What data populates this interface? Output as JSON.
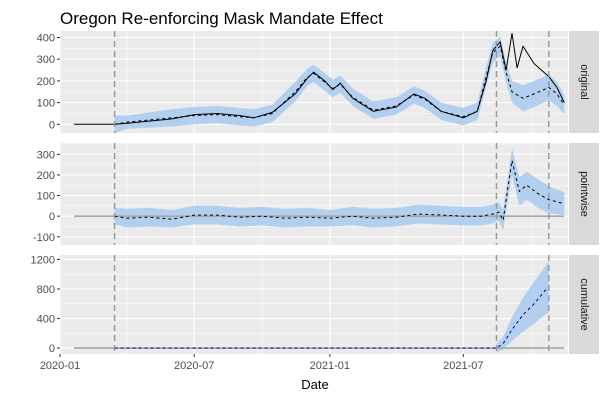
{
  "chart_data": {
    "type": "line",
    "title": "Oregon Re-enforcing Mask Mandate Effect",
    "xlabel": "Date",
    "ylabel": "",
    "xlim": [
      "2020-01-01",
      "2021-11-20"
    ],
    "x_ticks": [
      {
        "date": "2020-01-01",
        "label": "2020-01"
      },
      {
        "date": "2020-07-01",
        "label": "2020-07"
      },
      {
        "date": "2021-01-01",
        "label": "2021-01"
      },
      {
        "date": "2021-07-01",
        "label": "2021-07"
      }
    ],
    "vlines": [
      "2020-03-15",
      "2021-08-15",
      "2021-10-25"
    ],
    "legend": "none",
    "grid": true,
    "colors": {
      "panel_bg": "#ebebeb",
      "grid": "#ffffff",
      "band": "#b3cfef",
      "actual": "#000000",
      "predicted": "#000000",
      "baseline": "#a6a6a6",
      "cumulative_line": "#00008b",
      "vline": "#999999",
      "strip_bg": "#d9d9d9"
    },
    "panels": [
      {
        "strip": "original",
        "ylim": [
          -40,
          430
        ],
        "yticks": [
          0,
          100,
          200,
          300,
          400
        ],
        "actual": [
          [
            "2020-01-20",
            0
          ],
          [
            "2020-03-15",
            0
          ],
          [
            "2020-04-01",
            5
          ],
          [
            "2020-05-01",
            15
          ],
          [
            "2020-06-01",
            25
          ],
          [
            "2020-07-01",
            45
          ],
          [
            "2020-08-01",
            50
          ],
          [
            "2020-09-01",
            40
          ],
          [
            "2020-09-20",
            30
          ],
          [
            "2020-10-15",
            55
          ],
          [
            "2020-11-15",
            140
          ],
          [
            "2020-12-01",
            210
          ],
          [
            "2020-12-10",
            240
          ],
          [
            "2020-12-25",
            200
          ],
          [
            "2021-01-05",
            160
          ],
          [
            "2021-01-15",
            190
          ],
          [
            "2021-02-01",
            120
          ],
          [
            "2021-03-01",
            60
          ],
          [
            "2021-04-01",
            80
          ],
          [
            "2021-04-25",
            140
          ],
          [
            "2021-05-10",
            120
          ],
          [
            "2021-06-01",
            60
          ],
          [
            "2021-07-01",
            30
          ],
          [
            "2021-07-20",
            60
          ],
          [
            "2021-08-01",
            200
          ],
          [
            "2021-08-10",
            340
          ],
          [
            "2021-08-20",
            380
          ],
          [
            "2021-08-28",
            250
          ],
          [
            "2021-09-05",
            420
          ],
          [
            "2021-09-12",
            260
          ],
          [
            "2021-09-20",
            360
          ],
          [
            "2021-10-05",
            280
          ],
          [
            "2021-10-25",
            220
          ],
          [
            "2021-11-05",
            170
          ],
          [
            "2021-11-15",
            100
          ]
        ],
        "predicted": [
          [
            "2020-03-15",
            0
          ],
          [
            "2020-04-01",
            10
          ],
          [
            "2020-05-01",
            20
          ],
          [
            "2020-06-01",
            30
          ],
          [
            "2020-07-01",
            40
          ],
          [
            "2020-08-01",
            45
          ],
          [
            "2020-09-01",
            35
          ],
          [
            "2020-09-20",
            30
          ],
          [
            "2020-10-15",
            50
          ],
          [
            "2020-11-15",
            150
          ],
          [
            "2020-12-01",
            215
          ],
          [
            "2020-12-10",
            235
          ],
          [
            "2020-12-25",
            195
          ],
          [
            "2021-01-05",
            165
          ],
          [
            "2021-01-15",
            185
          ],
          [
            "2021-02-01",
            125
          ],
          [
            "2021-03-01",
            65
          ],
          [
            "2021-04-01",
            85
          ],
          [
            "2021-04-25",
            135
          ],
          [
            "2021-05-10",
            115
          ],
          [
            "2021-06-01",
            60
          ],
          [
            "2021-07-01",
            35
          ],
          [
            "2021-07-20",
            60
          ],
          [
            "2021-08-01",
            220
          ],
          [
            "2021-08-10",
            330
          ],
          [
            "2021-08-20",
            360
          ],
          [
            "2021-08-28",
            240
          ],
          [
            "2021-09-05",
            150
          ],
          [
            "2021-09-20",
            120
          ],
          [
            "2021-10-05",
            140
          ],
          [
            "2021-10-25",
            170
          ],
          [
            "2021-11-05",
            140
          ],
          [
            "2021-11-15",
            90
          ]
        ],
        "band_lower": [
          [
            "2020-03-15",
            -40
          ],
          [
            "2020-04-01",
            -20
          ],
          [
            "2020-05-01",
            -15
          ],
          [
            "2020-06-01",
            -10
          ],
          [
            "2020-07-01",
            0
          ],
          [
            "2020-08-01",
            5
          ],
          [
            "2020-09-01",
            -5
          ],
          [
            "2020-09-20",
            -10
          ],
          [
            "2020-10-15",
            10
          ],
          [
            "2020-11-15",
            105
          ],
          [
            "2020-12-01",
            175
          ],
          [
            "2020-12-10",
            195
          ],
          [
            "2020-12-25",
            155
          ],
          [
            "2021-01-05",
            125
          ],
          [
            "2021-01-15",
            145
          ],
          [
            "2021-02-01",
            85
          ],
          [
            "2021-03-01",
            25
          ],
          [
            "2021-04-01",
            45
          ],
          [
            "2021-04-25",
            95
          ],
          [
            "2021-05-10",
            75
          ],
          [
            "2021-06-01",
            20
          ],
          [
            "2021-07-01",
            -5
          ],
          [
            "2021-07-20",
            20
          ],
          [
            "2021-08-01",
            175
          ],
          [
            "2021-08-10",
            285
          ],
          [
            "2021-08-20",
            315
          ],
          [
            "2021-08-28",
            195
          ],
          [
            "2021-09-05",
            100
          ],
          [
            "2021-09-20",
            60
          ],
          [
            "2021-10-05",
            80
          ],
          [
            "2021-10-25",
            110
          ],
          [
            "2021-11-05",
            85
          ],
          [
            "2021-11-15",
            45
          ]
        ],
        "band_upper": [
          [
            "2020-03-15",
            40
          ],
          [
            "2020-04-01",
            40
          ],
          [
            "2020-05-01",
            55
          ],
          [
            "2020-06-01",
            70
          ],
          [
            "2020-07-01",
            80
          ],
          [
            "2020-08-01",
            85
          ],
          [
            "2020-09-01",
            75
          ],
          [
            "2020-09-20",
            70
          ],
          [
            "2020-10-15",
            90
          ],
          [
            "2020-11-15",
            195
          ],
          [
            "2020-12-01",
            255
          ],
          [
            "2020-12-10",
            275
          ],
          [
            "2020-12-25",
            235
          ],
          [
            "2021-01-05",
            205
          ],
          [
            "2021-01-15",
            225
          ],
          [
            "2021-02-01",
            165
          ],
          [
            "2021-03-01",
            105
          ],
          [
            "2021-04-01",
            125
          ],
          [
            "2021-04-25",
            175
          ],
          [
            "2021-05-10",
            155
          ],
          [
            "2021-06-01",
            100
          ],
          [
            "2021-07-01",
            75
          ],
          [
            "2021-07-20",
            100
          ],
          [
            "2021-08-01",
            265
          ],
          [
            "2021-08-10",
            375
          ],
          [
            "2021-08-20",
            405
          ],
          [
            "2021-08-28",
            285
          ],
          [
            "2021-09-05",
            200
          ],
          [
            "2021-09-20",
            180
          ],
          [
            "2021-10-05",
            200
          ],
          [
            "2021-10-25",
            230
          ],
          [
            "2021-11-05",
            195
          ],
          [
            "2021-11-15",
            135
          ]
        ]
      },
      {
        "strip": "pointwise",
        "ylim": [
          -140,
          355
        ],
        "yticks": [
          -100,
          0,
          100,
          200,
          300
        ],
        "baseline": 0,
        "predicted": [
          [
            "2020-03-15",
            0
          ],
          [
            "2020-04-01",
            -10
          ],
          [
            "2020-05-01",
            -5
          ],
          [
            "2020-06-01",
            -15
          ],
          [
            "2020-07-01",
            5
          ],
          [
            "2020-08-01",
            5
          ],
          [
            "2020-09-01",
            -5
          ],
          [
            "2020-10-01",
            0
          ],
          [
            "2020-11-01",
            -10
          ],
          [
            "2020-12-01",
            -5
          ],
          [
            "2021-01-01",
            -10
          ],
          [
            "2021-02-01",
            0
          ],
          [
            "2021-03-01",
            -10
          ],
          [
            "2021-04-01",
            -5
          ],
          [
            "2021-05-01",
            10
          ],
          [
            "2021-06-01",
            5
          ],
          [
            "2021-07-01",
            0
          ],
          [
            "2021-07-25",
            0
          ],
          [
            "2021-08-10",
            10
          ],
          [
            "2021-08-18",
            20
          ],
          [
            "2021-08-24",
            -20
          ],
          [
            "2021-09-05",
            270
          ],
          [
            "2021-09-15",
            120
          ],
          [
            "2021-09-25",
            150
          ],
          [
            "2021-10-10",
            110
          ],
          [
            "2021-10-25",
            80
          ],
          [
            "2021-11-05",
            70
          ],
          [
            "2021-11-15",
            60
          ]
        ],
        "band_lower": [
          [
            "2020-03-15",
            -40
          ],
          [
            "2020-04-01",
            -55
          ],
          [
            "2020-05-01",
            -50
          ],
          [
            "2020-06-01",
            -55
          ],
          [
            "2020-07-01",
            -40
          ],
          [
            "2020-08-01",
            -40
          ],
          [
            "2020-09-01",
            -50
          ],
          [
            "2020-10-01",
            -45
          ],
          [
            "2020-11-01",
            -55
          ],
          [
            "2020-12-01",
            -50
          ],
          [
            "2021-01-01",
            -50
          ],
          [
            "2021-02-01",
            -45
          ],
          [
            "2021-03-01",
            -55
          ],
          [
            "2021-04-01",
            -50
          ],
          [
            "2021-05-01",
            -35
          ],
          [
            "2021-06-01",
            -40
          ],
          [
            "2021-07-01",
            -45
          ],
          [
            "2021-07-25",
            -45
          ],
          [
            "2021-08-10",
            -35
          ],
          [
            "2021-08-18",
            -20
          ],
          [
            "2021-08-24",
            -70
          ],
          [
            "2021-09-05",
            200
          ],
          [
            "2021-09-15",
            50
          ],
          [
            "2021-09-25",
            80
          ],
          [
            "2021-10-10",
            40
          ],
          [
            "2021-10-25",
            15
          ],
          [
            "2021-11-05",
            10
          ],
          [
            "2021-11-15",
            5
          ]
        ],
        "band_upper": [
          [
            "2020-03-15",
            40
          ],
          [
            "2020-04-01",
            35
          ],
          [
            "2020-05-01",
            40
          ],
          [
            "2020-06-01",
            30
          ],
          [
            "2020-07-01",
            50
          ],
          [
            "2020-08-01",
            50
          ],
          [
            "2020-09-01",
            40
          ],
          [
            "2020-10-01",
            45
          ],
          [
            "2020-11-01",
            35
          ],
          [
            "2020-12-01",
            40
          ],
          [
            "2021-01-01",
            30
          ],
          [
            "2021-02-01",
            45
          ],
          [
            "2021-03-01",
            35
          ],
          [
            "2021-04-01",
            40
          ],
          [
            "2021-05-01",
            55
          ],
          [
            "2021-06-01",
            50
          ],
          [
            "2021-07-01",
            45
          ],
          [
            "2021-07-25",
            45
          ],
          [
            "2021-08-10",
            55
          ],
          [
            "2021-08-18",
            70
          ],
          [
            "2021-08-24",
            30
          ],
          [
            "2021-09-05",
            330
          ],
          [
            "2021-09-15",
            190
          ],
          [
            "2021-09-25",
            215
          ],
          [
            "2021-10-10",
            180
          ],
          [
            "2021-10-25",
            145
          ],
          [
            "2021-11-05",
            130
          ],
          [
            "2021-11-15",
            115
          ]
        ]
      },
      {
        "strip": "cumulative",
        "ylim": [
          -80,
          1260
        ],
        "yticks": [
          0,
          400,
          800,
          1200
        ],
        "baseline": 0,
        "predicted": [
          [
            "2020-03-15",
            0
          ],
          [
            "2021-08-15",
            0
          ],
          [
            "2021-08-24",
            60
          ],
          [
            "2021-09-05",
            250
          ],
          [
            "2021-09-20",
            450
          ],
          [
            "2021-10-05",
            600
          ],
          [
            "2021-10-20",
            780
          ],
          [
            "2021-10-25",
            820
          ]
        ],
        "band_lower": [
          [
            "2021-08-15",
            -60
          ],
          [
            "2021-08-24",
            -20
          ],
          [
            "2021-09-05",
            100
          ],
          [
            "2021-09-20",
            220
          ],
          [
            "2021-10-05",
            330
          ],
          [
            "2021-10-20",
            450
          ],
          [
            "2021-10-25",
            480
          ]
        ],
        "band_upper": [
          [
            "2021-08-15",
            60
          ],
          [
            "2021-08-24",
            150
          ],
          [
            "2021-09-05",
            420
          ],
          [
            "2021-09-20",
            680
          ],
          [
            "2021-10-05",
            900
          ],
          [
            "2021-10-20",
            1100
          ],
          [
            "2021-10-25",
            1180
          ]
        ]
      }
    ]
  }
}
